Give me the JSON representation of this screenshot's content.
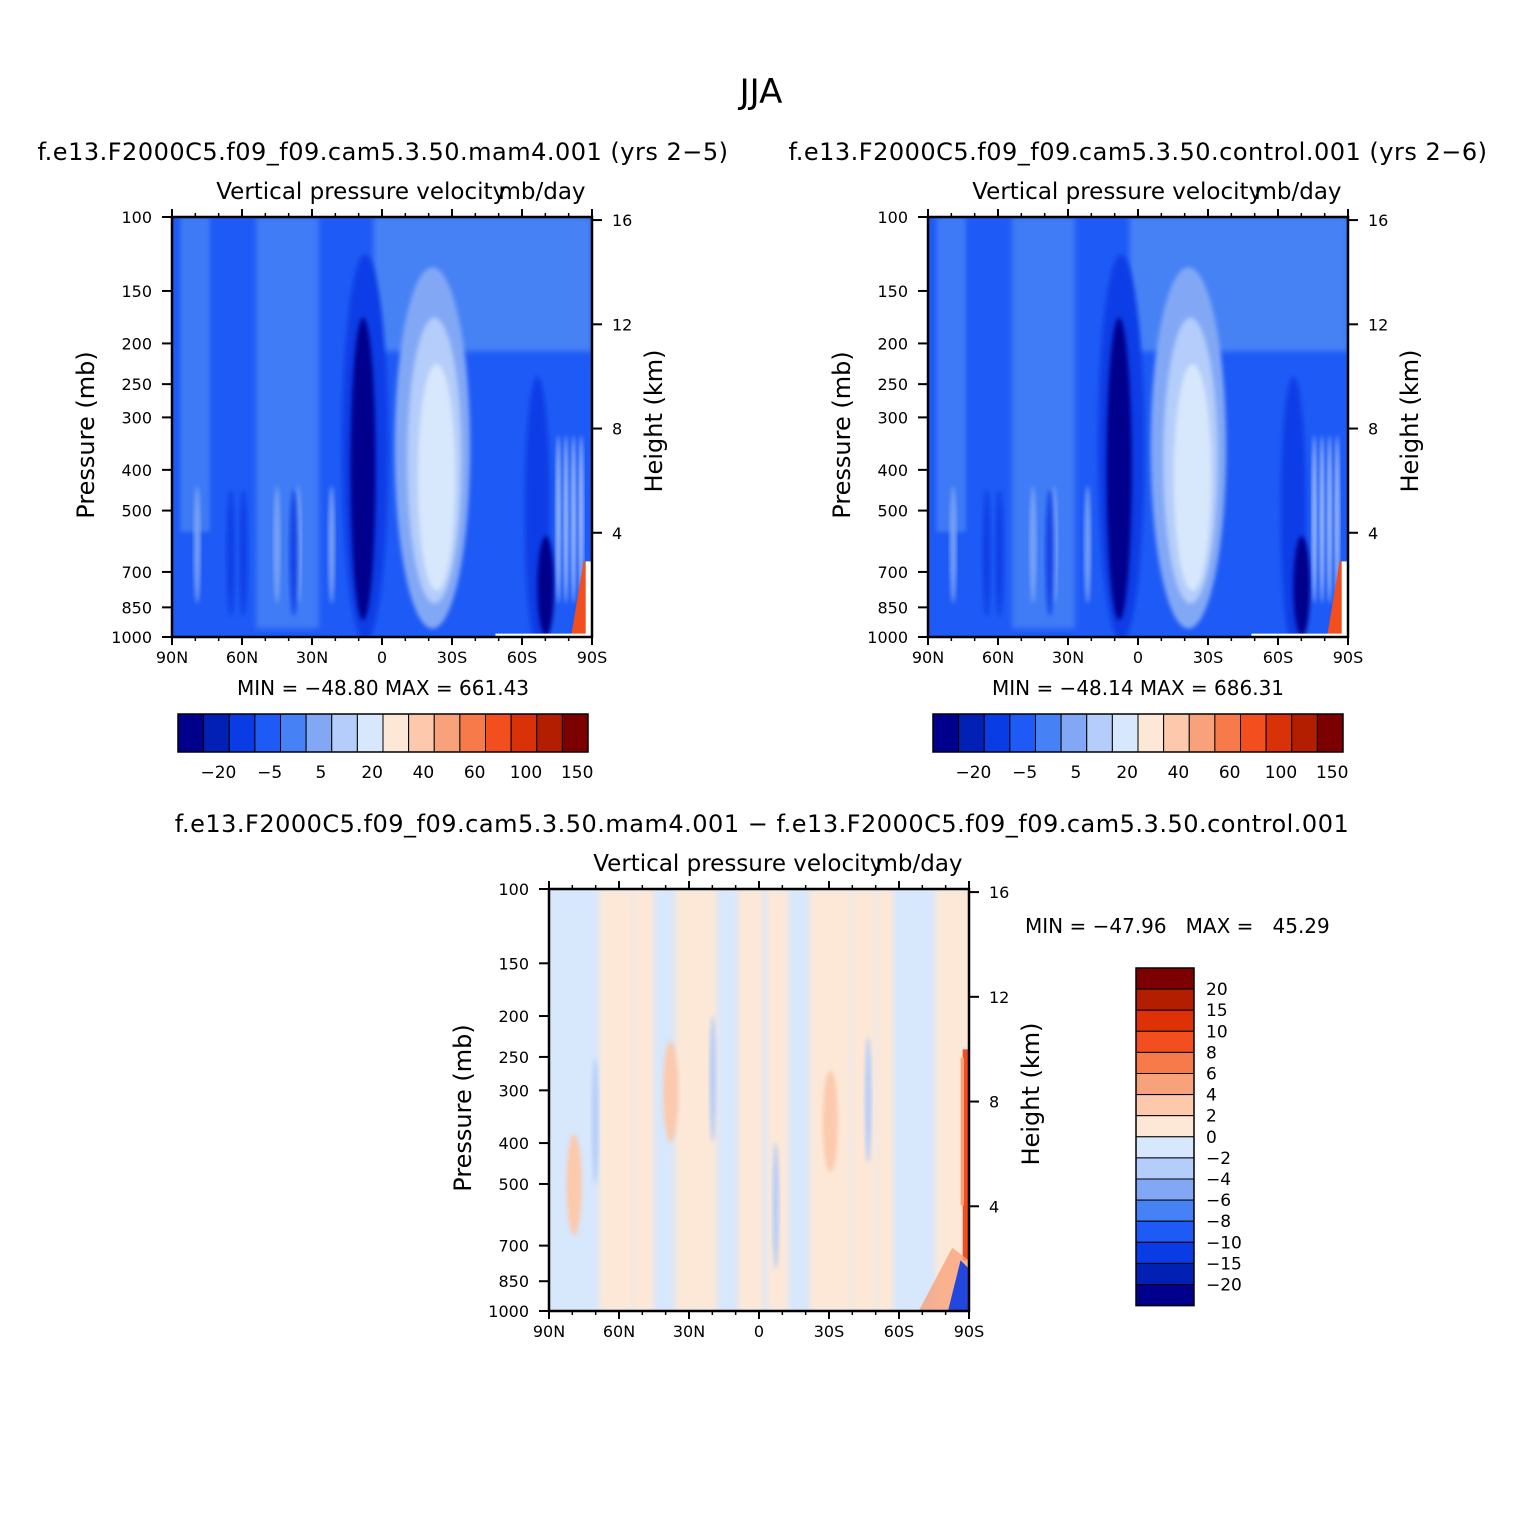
{
  "suptitle": "JJA",
  "panels": [
    {
      "case_title": "f.e13.F2000C5.f09_f09.cam5.3.50.mam4.001 (yrs 2−5)",
      "variable_label": "Vertical pressure velocity",
      "units_label": "mb/day",
      "stats": "MIN = −48.80   MAX = 661.43"
    },
    {
      "case_title": "f.e13.F2000C5.f09_f09.cam5.3.50.control.001 (yrs 2−6)",
      "variable_label": "Vertical pressure velocity",
      "units_label": "mb/day",
      "stats": "MIN = −48.14   MAX = 686.31"
    },
    {
      "case_title": "f.e13.F2000C5.f09_f09.cam5.3.50.mam4.001 − f.e13.F2000C5.f09_f09.cam5.3.50.control.001",
      "variable_label": "Vertical pressure velocity",
      "units_label": "mb/day",
      "stats": "MIN = −47.96   MAX =   45.29"
    }
  ],
  "chart_data": [
    {
      "type": "heatmap",
      "title": "f.e13.F2000C5.f09_f09.cam5.3.50.mam4.001 (yrs 2−5)",
      "variable": "Vertical pressure velocity",
      "units": "mb/day",
      "xlabel": "",
      "ylabel": "Pressure (mb)",
      "ylabel_right": "Height (km)",
      "xticks": [
        "90N",
        "60N",
        "30N",
        "0",
        "30S",
        "60S",
        "90S"
      ],
      "yticks": [
        100,
        150,
        200,
        250,
        300,
        400,
        500,
        700,
        850,
        1000
      ],
      "yticks_right": [
        4,
        8,
        12,
        16
      ],
      "y_scale": "log",
      "y_range": [
        1000,
        100
      ],
      "color_levels": [
        "−20",
        "−5",
        "5",
        "20",
        "40",
        "60",
        "100",
        "150"
      ],
      "min": -48.8,
      "max": 661.43
    },
    {
      "type": "heatmap",
      "title": "f.e13.F2000C5.f09_f09.cam5.3.50.control.001 (yrs 2−6)",
      "variable": "Vertical pressure velocity",
      "units": "mb/day",
      "xlabel": "",
      "ylabel": "Pressure (mb)",
      "ylabel_right": "Height (km)",
      "xticks": [
        "90N",
        "60N",
        "30N",
        "0",
        "30S",
        "60S",
        "90S"
      ],
      "yticks": [
        100,
        150,
        200,
        250,
        300,
        400,
        500,
        700,
        850,
        1000
      ],
      "yticks_right": [
        4,
        8,
        12,
        16
      ],
      "y_scale": "log",
      "y_range": [
        1000,
        100
      ],
      "color_levels": [
        "−20",
        "−5",
        "5",
        "20",
        "40",
        "60",
        "100",
        "150"
      ],
      "min": -48.14,
      "max": 686.31
    },
    {
      "type": "heatmap",
      "title": "f.e13.F2000C5.f09_f09.cam5.3.50.mam4.001 − f.e13.F2000C5.f09_f09.cam5.3.50.control.001",
      "variable": "Vertical pressure velocity",
      "units": "mb/day",
      "xlabel": "",
      "ylabel": "Pressure (mb)",
      "ylabel_right": "Height (km)",
      "xticks": [
        "90N",
        "60N",
        "30N",
        "0",
        "30S",
        "60S",
        "90S"
      ],
      "yticks": [
        100,
        150,
        200,
        250,
        300,
        400,
        500,
        700,
        850,
        1000
      ],
      "yticks_right": [
        4,
        8,
        12,
        16
      ],
      "y_scale": "log",
      "y_range": [
        1000,
        100
      ],
      "color_levels": [
        "20",
        "15",
        "10",
        "8",
        "6",
        "4",
        "2",
        "0",
        "−2",
        "−4",
        "−6",
        "−8",
        "−10",
        "−15",
        "−20"
      ],
      "min": -47.96,
      "max": 45.29
    }
  ],
  "colorbar_main": {
    "colors": [
      "#00008c",
      "#0320b4",
      "#0a3ce6",
      "#1e5af5",
      "#4682f5",
      "#82a8f5",
      "#b4cdfa",
      "#d7e7fc",
      "#fde8d7",
      "#fcc9ac",
      "#f8a27c",
      "#f67a4a",
      "#f24e1e",
      "#d93208",
      "#b41e00",
      "#7d0000"
    ],
    "labels": [
      "−20",
      "−5",
      "5",
      "20",
      "40",
      "60",
      "100",
      "150"
    ]
  },
  "colorbar_diff": {
    "colors_top_to_bottom": [
      "#7d0000",
      "#b41e00",
      "#dc3205",
      "#f24e1e",
      "#f67a4a",
      "#f8a27c",
      "#fcc9ac",
      "#fde8d7",
      "#d7e7fc",
      "#b4cdfa",
      "#82a8f5",
      "#4682f5",
      "#1e5af5",
      "#0a3ce6",
      "#0320b4",
      "#00008c"
    ],
    "labels": [
      "20",
      "15",
      "10",
      "8",
      "6",
      "4",
      "2",
      "0",
      "−2",
      "−4",
      "−6",
      "−8",
      "−10",
      "−15",
      "−20"
    ]
  }
}
